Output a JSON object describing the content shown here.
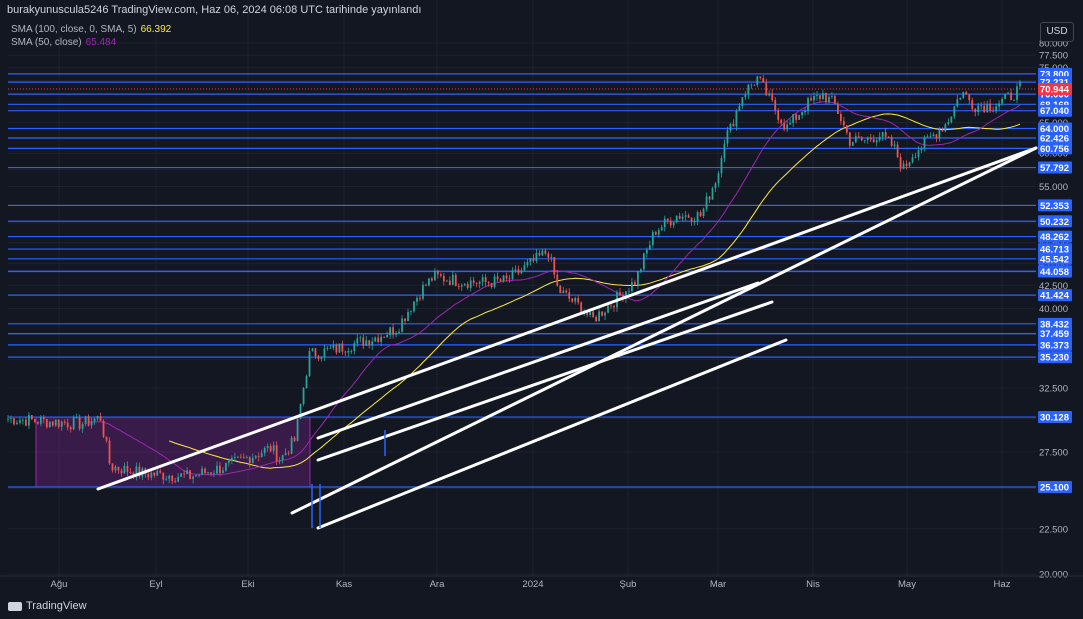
{
  "header": {
    "text": "burakyunuscula5246 TradingView.com, Haz 06, 2024 06:08 UTC tarihinde yayınlandı"
  },
  "indicators": [
    {
      "label": "SMA (100, close, 0, SMA, 5)",
      "value": "66.392",
      "color": "#ffeb3b"
    },
    {
      "label": "SMA (50, close)",
      "value": "65.484",
      "color": "#9c27b0"
    }
  ],
  "currency_button": "USD",
  "footer": {
    "brand": "TradingView"
  },
  "chart_data": {
    "type": "candlestick",
    "x_labels": [
      "Ağu",
      "Eyl",
      "Eki",
      "Kas",
      "Ara",
      "2024",
      "Şub",
      "Mar",
      "Nis",
      "May",
      "Haz"
    ],
    "y_tick_labels": [
      "80.000",
      "77.500",
      "75.000",
      "72.500",
      "70.000",
      "67.500",
      "65.000",
      "62.500",
      "60.000",
      "57.500",
      "55.000",
      "52.500",
      "50.000",
      "47.500",
      "45.000",
      "42.500",
      "40.000",
      "37.500",
      "35.000",
      "32.500",
      "30.000",
      "27.500",
      "25.000",
      "22.500",
      "20.000"
    ],
    "price_levels": [
      "73.800",
      "72.231",
      "70.000",
      "68.169",
      "67.040",
      "64.000",
      "62.426",
      "60.756",
      "57.792",
      "52.353",
      "50.232",
      "48.262",
      "46.713",
      "45.542",
      "44.082",
      "44.058",
      "41.424",
      "38.432",
      "37.459",
      "37.459",
      "36.373",
      "35.230",
      "30.128",
      "25.100"
    ],
    "current_price": "70.944",
    "colors": {
      "up": "#26a69a",
      "down": "#ef5350",
      "level": "#2962ff",
      "current": "#f23645",
      "sma100": "#ffeb3b",
      "sma50": "#9c27b0",
      "trend": "#ffffff"
    }
  }
}
